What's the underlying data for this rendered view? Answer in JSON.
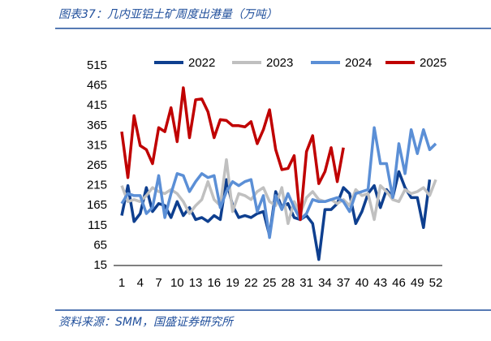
{
  "chart_data": {
    "type": "line",
    "title": "图表37：几内亚铝土矿周度出港量（万吨）",
    "source": "资料来源：SMM，国盛证券研究所",
    "x": [
      1,
      2,
      3,
      4,
      5,
      6,
      7,
      8,
      9,
      10,
      11,
      12,
      13,
      14,
      15,
      16,
      17,
      18,
      19,
      20,
      21,
      22,
      23,
      24,
      25,
      26,
      27,
      28,
      29,
      30,
      31,
      32,
      33,
      34,
      35,
      36,
      37,
      38,
      39,
      40,
      41,
      42,
      43,
      44,
      45,
      46,
      47,
      48,
      49,
      50,
      51,
      52
    ],
    "xlim": [
      1,
      52
    ],
    "xticks": [
      1,
      4,
      7,
      10,
      13,
      16,
      19,
      22,
      25,
      28,
      31,
      34,
      37,
      40,
      43,
      46,
      49,
      52
    ],
    "ylim": [
      15,
      515
    ],
    "yticks": [
      15,
      65,
      115,
      165,
      215,
      265,
      315,
      365,
      415,
      465,
      515
    ],
    "legend": "top",
    "series": [
      {
        "name": "2022",
        "color": "#0e3f8f",
        "values": [
          140,
          215,
          125,
          145,
          210,
          150,
          170,
          165,
          135,
          175,
          140,
          160,
          130,
          135,
          125,
          140,
          130,
          230,
          165,
          135,
          140,
          135,
          145,
          150,
          90,
          200,
          160,
          170,
          135,
          130,
          140,
          120,
          30,
          155,
          155,
          170,
          210,
          195,
          120,
          150,
          195,
          215,
          160,
          205,
          185,
          250,
          210,
          185,
          185,
          110,
          230,
          null
        ]
      },
      {
        "name": "2023",
        "color": "#c0c0c0",
        "values": [
          215,
          175,
          180,
          175,
          190,
          210,
          200,
          195,
          205,
          195,
          175,
          145,
          165,
          180,
          225,
          180,
          165,
          280,
          150,
          195,
          190,
          180,
          200,
          210,
          175,
          165,
          210,
          120,
          175,
          145,
          185,
          200,
          180,
          175,
          180,
          170,
          180,
          165,
          205,
          190,
          195,
          130,
          215,
          200,
          180,
          175,
          205,
          195,
          200,
          210,
          190,
          230
        ]
      },
      {
        "name": "2024",
        "color": "#5b8fd6",
        "values": [
          170,
          195,
          190,
          190,
          145,
          160,
          240,
          135,
          195,
          245,
          240,
          200,
          225,
          245,
          235,
          240,
          160,
          200,
          225,
          215,
          225,
          230,
          150,
          190,
          85,
          190,
          155,
          195,
          160,
          130,
          145,
          180,
          175,
          175,
          180,
          185,
          175,
          150,
          195,
          200,
          205,
          360,
          270,
          270,
          185,
          320,
          245,
          355,
          295,
          355,
          305,
          320
        ]
      },
      {
        "name": "2025",
        "color": "#c00000",
        "values": [
          350,
          235,
          390,
          315,
          305,
          270,
          360,
          350,
          410,
          325,
          460,
          335,
          430,
          432,
          400,
          335,
          380,
          378,
          365,
          365,
          362,
          375,
          320,
          355,
          405,
          305,
          255,
          258,
          290,
          130,
          300,
          340,
          220,
          250,
          310,
          225,
          310,
          null,
          null,
          null,
          null,
          null,
          null,
          null,
          null,
          null,
          null,
          null,
          null,
          null,
          null,
          null
        ]
      }
    ]
  }
}
